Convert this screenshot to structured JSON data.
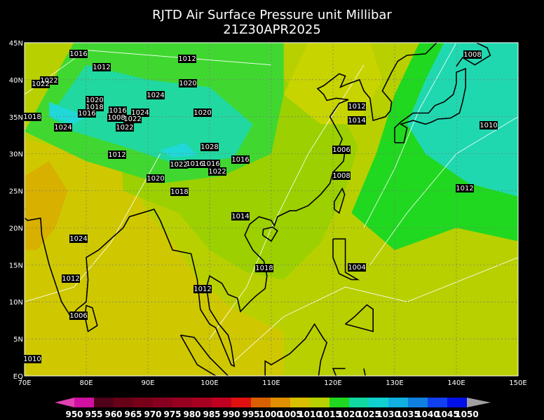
{
  "header": {
    "title": "RJTD Air Surface Pressure unit Millibar",
    "subtitle": "21Z30APR2025"
  },
  "map": {
    "lon_ticks": [
      {
        "value": 70,
        "label": "70E"
      },
      {
        "value": 80,
        "label": "80E"
      },
      {
        "value": 90,
        "label": "90E"
      },
      {
        "value": 100,
        "label": "100E"
      },
      {
        "value": 110,
        "label": "110E"
      },
      {
        "value": 120,
        "label": "120E"
      },
      {
        "value": 130,
        "label": "130E"
      },
      {
        "value": 140,
        "label": "140E"
      },
      {
        "value": 150,
        "label": "150E"
      }
    ],
    "lat_ticks": [
      {
        "value": 45,
        "label": "45N"
      },
      {
        "value": 40,
        "label": "40N"
      },
      {
        "value": 35,
        "label": "35N"
      },
      {
        "value": 30,
        "label": "30N"
      },
      {
        "value": 25,
        "label": "25N"
      },
      {
        "value": 20,
        "label": "20N"
      },
      {
        "value": 15,
        "label": "15N"
      },
      {
        "value": 10,
        "label": "10N"
      },
      {
        "value": 5,
        "label": "5N"
      },
      {
        "value": 0,
        "label": "EQ"
      }
    ],
    "contour_labels": [
      1016,
      1012,
      1012,
      1020,
      1022,
      1022,
      1020,
      1018,
      1016,
      1016,
      1024,
      1024,
      1022,
      1022,
      1020,
      1018,
      1024,
      1012,
      1028,
      1016,
      1022,
      1016,
      1016,
      1022,
      1020,
      1018,
      1014,
      1012,
      1014,
      1006,
      1008,
      1010,
      1012,
      1024,
      1018,
      1004,
      1012,
      1012,
      1006,
      1010,
      1008,
      1008
    ]
  },
  "colorbar": {
    "levels": [
      950,
      955,
      960,
      965,
      970,
      975,
      980,
      985,
      990,
      995,
      1000,
      1005,
      1010,
      1015,
      1020,
      1025,
      1030,
      1035,
      1040,
      1045,
      1050
    ],
    "colors": [
      "#e040b0",
      "#d010a0",
      "#500018",
      "#680018",
      "#780018",
      "#880020",
      "#980020",
      "#a80020",
      "#c00020",
      "#e01010",
      "#d86000",
      "#e09000",
      "#d8c000",
      "#b8d000",
      "#20d820",
      "#10d8a0",
      "#10d0d0",
      "#10b0e0",
      "#1080e0",
      "#1040f0",
      "#0010e8",
      "#a0a0a0"
    ]
  }
}
